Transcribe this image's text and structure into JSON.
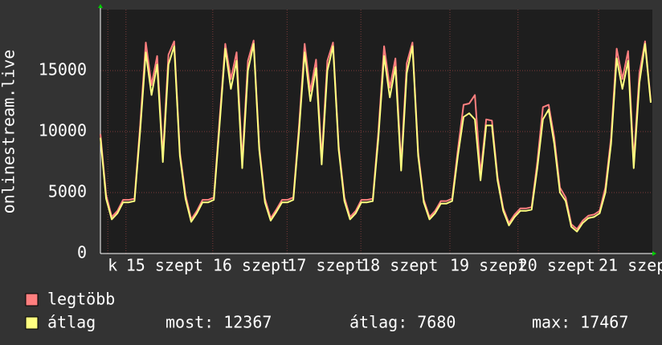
{
  "chart_data": {
    "type": "line",
    "y_label": "onlinestream.live",
    "ylim": [
      0,
      20000
    ],
    "yticks": [
      0,
      5000,
      10000,
      15000
    ],
    "xlim": [
      0,
      97
    ],
    "xticks": [
      {
        "value": 1.3,
        "label": "k"
      },
      {
        "value": 4.5,
        "label": "15 szept"
      },
      {
        "value": 19.8,
        "label": "16 szept"
      },
      {
        "value": 32.9,
        "label": "17 szept"
      },
      {
        "value": 45.9,
        "label": "18 szept"
      },
      {
        "value": 61.6,
        "label": "19 szept"
      },
      {
        "value": 73.6,
        "label": "20 szept"
      },
      {
        "value": 87.8,
        "label": "21 szep"
      }
    ],
    "grid": true,
    "series": [
      {
        "name": "legtöbb",
        "color": "#ff7f7f",
        "values": [
          9800,
          4800,
          3000,
          3500,
          4400,
          4400,
          4500,
          10500,
          17300,
          13800,
          16200,
          8000,
          16300,
          17400,
          8300,
          4800,
          2800,
          3500,
          4400,
          4400,
          4600,
          11000,
          17200,
          14300,
          16500,
          7600,
          15800,
          17467,
          8800,
          4500,
          2900,
          3600,
          4400,
          4400,
          4600,
          10500,
          17200,
          13300,
          15900,
          7800,
          15800,
          17300,
          8800,
          4600,
          3000,
          3500,
          4400,
          4400,
          4500,
          10000,
          17000,
          13600,
          16000,
          7300,
          15600,
          17300,
          8300,
          4400,
          3000,
          3500,
          4300,
          4300,
          4500,
          8500,
          12200,
          12300,
          13000,
          6500,
          11000,
          10900,
          6300,
          3700,
          2500,
          3200,
          3700,
          3700,
          3800,
          7500,
          12000,
          12200,
          9500,
          5400,
          4600,
          2400,
          2000,
          2700,
          3100,
          3200,
          3500,
          5400,
          9500,
          16800,
          14300,
          16600,
          7600,
          14800,
          17400,
          12500
        ]
      },
      {
        "name": "átlag",
        "color": "#ffff80",
        "values": [
          9500,
          4500,
          2800,
          3300,
          4200,
          4200,
          4300,
          10000,
          16500,
          13000,
          15500,
          7500,
          15500,
          17000,
          8000,
          4500,
          2600,
          3300,
          4200,
          4200,
          4400,
          10500,
          16800,
          13500,
          15800,
          7000,
          15000,
          17200,
          8500,
          4200,
          2700,
          3400,
          4200,
          4200,
          4400,
          10000,
          16500,
          12500,
          15200,
          7300,
          15000,
          17000,
          8500,
          4300,
          2800,
          3300,
          4200,
          4200,
          4300,
          9500,
          16200,
          12800,
          15300,
          6800,
          14800,
          17000,
          8000,
          4200,
          2800,
          3300,
          4100,
          4100,
          4300,
          8000,
          11200,
          11500,
          11000,
          6000,
          10500,
          10500,
          6000,
          3500,
          2300,
          3000,
          3500,
          3500,
          3600,
          7000,
          11000,
          11800,
          9000,
          5000,
          4300,
          2200,
          1800,
          2500,
          2900,
          3000,
          3300,
          5000,
          9000,
          16000,
          13500,
          15800,
          7000,
          14000,
          17200,
          12367
        ]
      }
    ],
    "stats": [
      {
        "label": "most:",
        "value": 12367
      },
      {
        "label": "átlag:",
        "value": 7680
      },
      {
        "label": "max:",
        "value": 17467
      }
    ]
  }
}
